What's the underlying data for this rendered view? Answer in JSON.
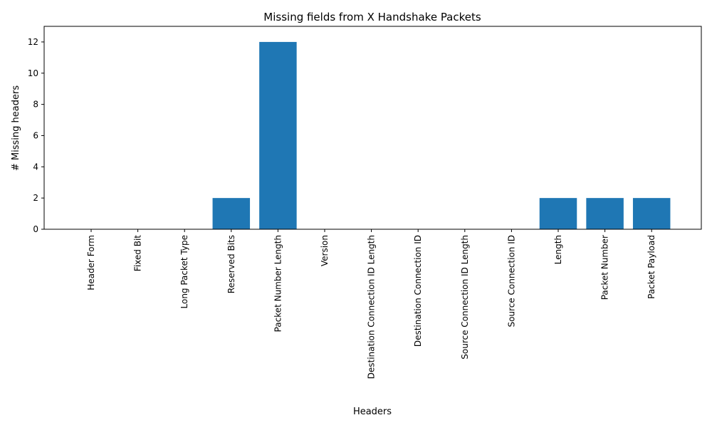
{
  "chart_data": {
    "type": "bar",
    "title": "Missing fields from X Handshake Packets",
    "xlabel": "Headers",
    "ylabel": "# Missing headers",
    "categories": [
      "Header Form",
      "Fixed Bit",
      "Long Packet Type",
      "Reserved Bits",
      "Packet Number Length",
      "Version",
      "Destination Connection ID Length",
      "Destination Connection ID",
      "Source Connection ID Length",
      "Source Connection ID",
      "Length",
      "Packet Number",
      "Packet Payload"
    ],
    "values": [
      0,
      0,
      0,
      2,
      12,
      0,
      0,
      0,
      0,
      0,
      2,
      2,
      2
    ],
    "ylim": [
      0,
      13
    ],
    "yticks": [
      0,
      2,
      4,
      6,
      8,
      10,
      12
    ],
    "grid": false,
    "bar_color": "#1f77b4"
  }
}
